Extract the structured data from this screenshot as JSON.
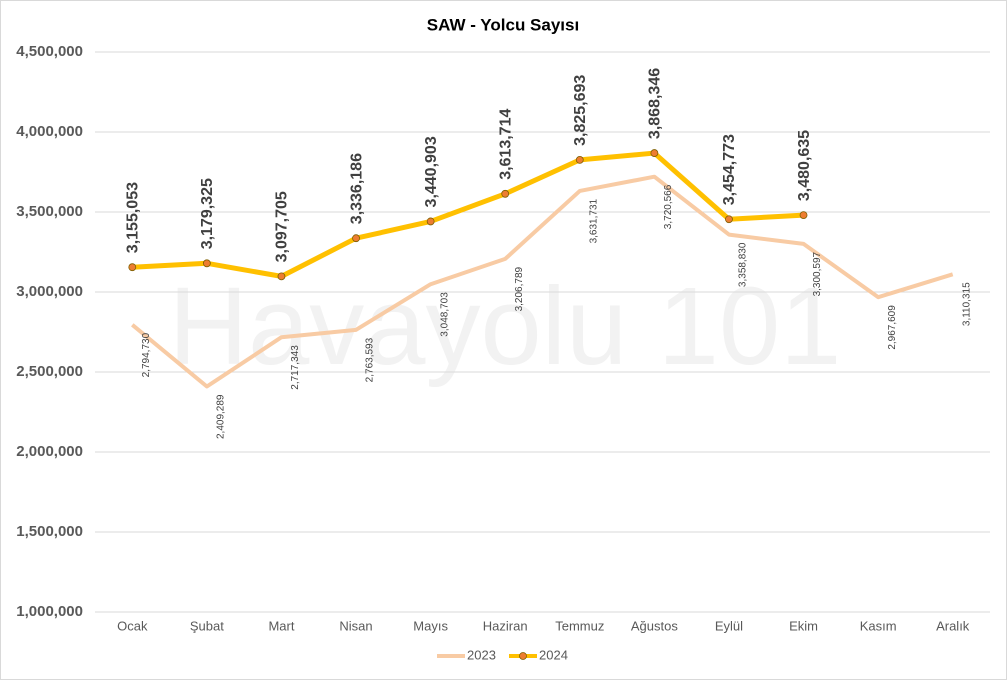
{
  "chart_data": {
    "type": "line",
    "title": "SAW - Yolcu Sayısı",
    "watermark": "Havayolu 101",
    "categories": [
      "Ocak",
      "Şubat",
      "Mart",
      "Nisan",
      "Mayıs",
      "Haziran",
      "Temmuz",
      "Ağustos",
      "Eylül",
      "Ekim",
      "Kasım",
      "Aralık"
    ],
    "series": [
      {
        "name": "2023",
        "color": "#f8cba4",
        "markers": false,
        "values": [
          2794730,
          2409289,
          2717343,
          2763593,
          3048703,
          3206789,
          3631731,
          3720566,
          3358830,
          3300597,
          2967609,
          3110315
        ],
        "value_labels": [
          "2,794,730",
          "2,409,289",
          "2,717,343",
          "2,763,593",
          "3,048,703",
          "3,206,789",
          "3,631,731",
          "3,720,566",
          "3,358,830",
          "3,300,597",
          "2,967,609",
          "3,110,315"
        ]
      },
      {
        "name": "2024",
        "color": "#ffc000",
        "markers": true,
        "marker_color": "#ed7d31",
        "values": [
          3155053,
          3179325,
          3097705,
          3336186,
          3440903,
          3613714,
          3825693,
          3868346,
          3454773,
          3480635,
          null,
          null
        ],
        "value_labels": [
          "3,155,053",
          "3,179,325",
          "3,097,705",
          "3,336,186",
          "3,440,903",
          "3,613,714",
          "3,825,693",
          "3,868,346",
          "3,454,773",
          "3,480,635",
          null,
          null
        ]
      }
    ],
    "ylim": [
      1000000,
      4500000
    ],
    "yticks": [
      {
        "value": 1000000,
        "label": "1,000,000"
      },
      {
        "value": 1500000,
        "label": "1,500,000"
      },
      {
        "value": 2000000,
        "label": "2,000,000"
      },
      {
        "value": 2500000,
        "label": "2,500,000"
      },
      {
        "value": 3000000,
        "label": "3,000,000"
      },
      {
        "value": 3500000,
        "label": "3,500,000"
      },
      {
        "value": 4000000,
        "label": "4,000,000"
      },
      {
        "value": 4500000,
        "label": "4,500,000"
      }
    ],
    "grid": true,
    "legend": "bottom"
  }
}
